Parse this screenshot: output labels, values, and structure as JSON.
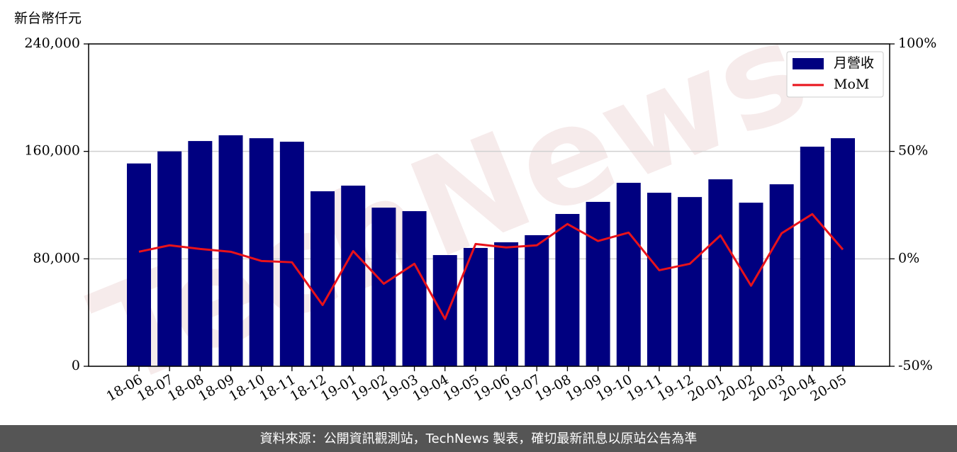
{
  "chart_data": {
    "type": "bar",
    "ylabel": "新台幣仟元",
    "categories": [
      "18-06",
      "18-07",
      "18-08",
      "18-09",
      "18-10",
      "18-11",
      "18-12",
      "19-01",
      "19-02",
      "19-03",
      "19-04",
      "19-05",
      "19-06",
      "19-07",
      "19-08",
      "19-09",
      "19-10",
      "19-11",
      "19-12",
      "20-01",
      "20-02",
      "20-03",
      "20-04",
      "20-05"
    ],
    "series": [
      {
        "name": "月營收",
        "color": "#000080",
        "type": "bar",
        "values": [
          151000,
          160000,
          167700,
          172000,
          169800,
          167200,
          130300,
          134500,
          118100,
          115500,
          82800,
          88100,
          92300,
          97600,
          113400,
          122400,
          136600,
          129200,
          126000,
          139200,
          121800,
          135500,
          163500,
          169800
        ]
      },
      {
        "name": "MoM",
        "color": "#e8121a",
        "type": "line",
        "axis": "y2",
        "values": [
          3.3,
          6.3,
          4.6,
          3.3,
          -1.0,
          -1.6,
          -21.5,
          3.6,
          -11.6,
          -2.3,
          -28.0,
          6.9,
          5.3,
          6.3,
          16.2,
          8.3,
          12.2,
          -5.3,
          -2.3,
          10.9,
          -12.5,
          11.9,
          20.8,
          4.3
        ]
      }
    ],
    "ylim": [
      0,
      240000
    ],
    "yticks": [
      0,
      {
        "value": 80000,
        "label": "80,000"
      },
      {
        "value": 160000,
        "label": "160,000"
      },
      {
        "value": 240000,
        "label": "240,000"
      }
    ],
    "y2lim": [
      -50,
      100
    ],
    "y2ticks": [
      {
        "value": -50,
        "label": "-50%"
      },
      {
        "value": 0,
        "label": "0%"
      },
      {
        "value": 50,
        "label": "50%"
      },
      {
        "value": 100,
        "label": "100%"
      }
    ],
    "grid": true,
    "legend": "upper right",
    "watermark": "TechNews",
    "footer": "資料來源：公開資訊觀測站，TechNews 製表，確切最新訊息以原站公告為準"
  }
}
